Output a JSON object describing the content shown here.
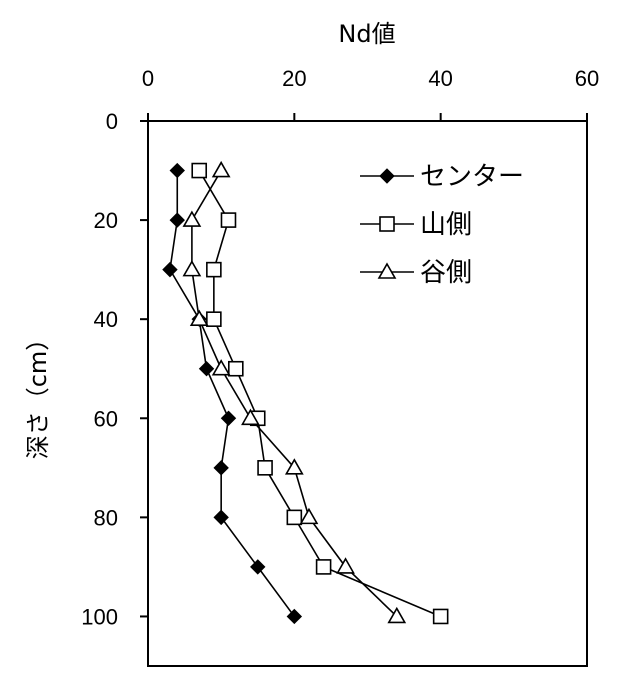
{
  "chart_data": {
    "type": "line",
    "title": "",
    "xlabel": "Nd値",
    "ylabel": "深さ（cm）",
    "x_axis_position": "top",
    "y_inverted": true,
    "xlim": [
      0,
      60
    ],
    "ylim": [
      0,
      110
    ],
    "x_ticks": [
      0,
      20,
      40,
      60
    ],
    "y_ticks": [
      0,
      20,
      40,
      60,
      80,
      100
    ],
    "grid": false,
    "legend_position": "top-right",
    "series": [
      {
        "name": "センター",
        "marker": "filled-diamond",
        "x": [
          4,
          4,
          3,
          7,
          8,
          11,
          10,
          10,
          15,
          20
        ],
        "y": [
          10,
          20,
          30,
          40,
          50,
          60,
          70,
          80,
          90,
          100
        ]
      },
      {
        "name": "山側",
        "marker": "open-square",
        "x": [
          7,
          11,
          9,
          9,
          12,
          15,
          16,
          20,
          24,
          40
        ],
        "y": [
          10,
          20,
          30,
          40,
          50,
          60,
          70,
          80,
          90,
          100
        ]
      },
      {
        "name": "谷側",
        "marker": "open-triangle",
        "x": [
          10,
          6,
          6,
          7,
          10,
          14,
          20,
          22,
          27,
          34
        ],
        "y": [
          10,
          20,
          30,
          40,
          50,
          60,
          70,
          80,
          90,
          100
        ]
      }
    ]
  }
}
